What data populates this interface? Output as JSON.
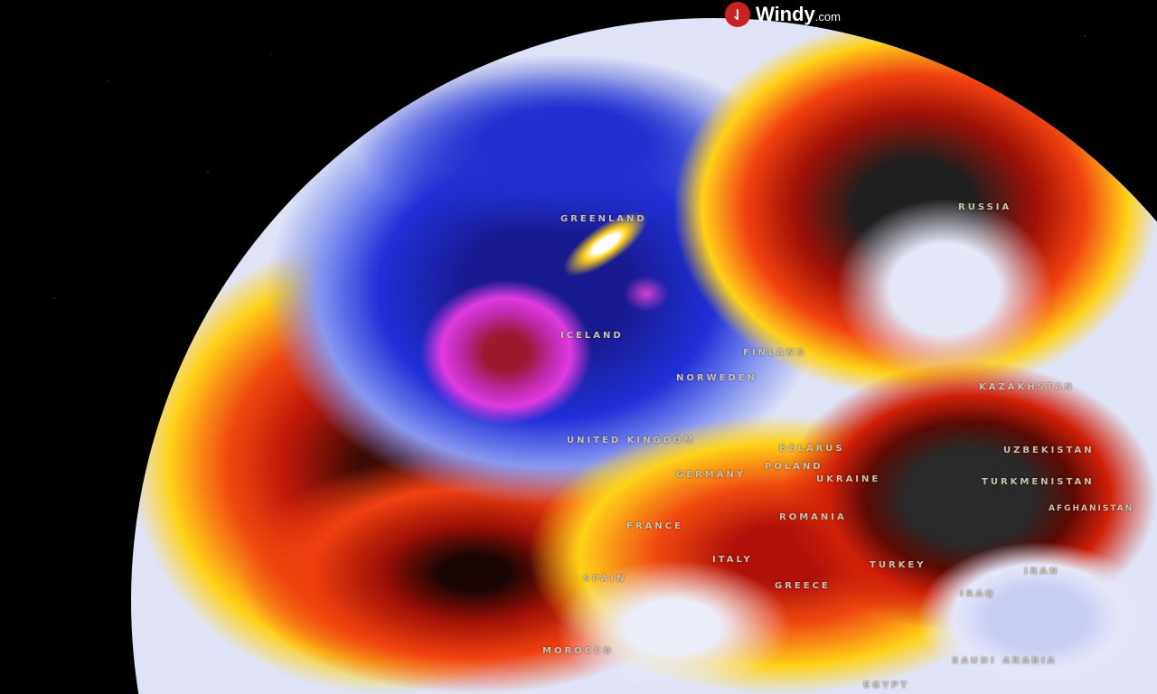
{
  "brand": {
    "name": "Windy",
    "suffix": ".com",
    "icon": "windy-logo-icon",
    "color": "#c8231f"
  },
  "map": {
    "projection": "globe",
    "colors": {
      "cold": "#1a2fd0",
      "very_cold": "#e03be0",
      "neutral": "#e0e4f6",
      "warm": "#ffd21a",
      "hot": "#e8300a",
      "very_hot": "#2a2a2a"
    },
    "labels": [
      {
        "name": "GREENLAND"
      },
      {
        "name": "RUSSIA"
      },
      {
        "name": "ICELAND"
      },
      {
        "name": "FINLAND"
      },
      {
        "name": "NORWEDEN"
      },
      {
        "name": "KAZAKHSTAN"
      },
      {
        "name": "UNITED KINGDOM"
      },
      {
        "name": "BELARUS"
      },
      {
        "name": "UZBEKISTAN"
      },
      {
        "name": "POLAND"
      },
      {
        "name": "GERMANY"
      },
      {
        "name": "UKRAINE"
      },
      {
        "name": "TURKMENISTAN"
      },
      {
        "name": "AFGHANISTAN"
      },
      {
        "name": "ROMANIA"
      },
      {
        "name": "FRANCE"
      },
      {
        "name": "TURKEY"
      },
      {
        "name": "IRAN"
      },
      {
        "name": "SPAIN"
      },
      {
        "name": "ITALY"
      },
      {
        "name": "GREECE"
      },
      {
        "name": "IRAQ"
      },
      {
        "name": "MOROCCO"
      },
      {
        "name": "SAUDI ARABIA"
      },
      {
        "name": "EGYPT"
      }
    ]
  }
}
